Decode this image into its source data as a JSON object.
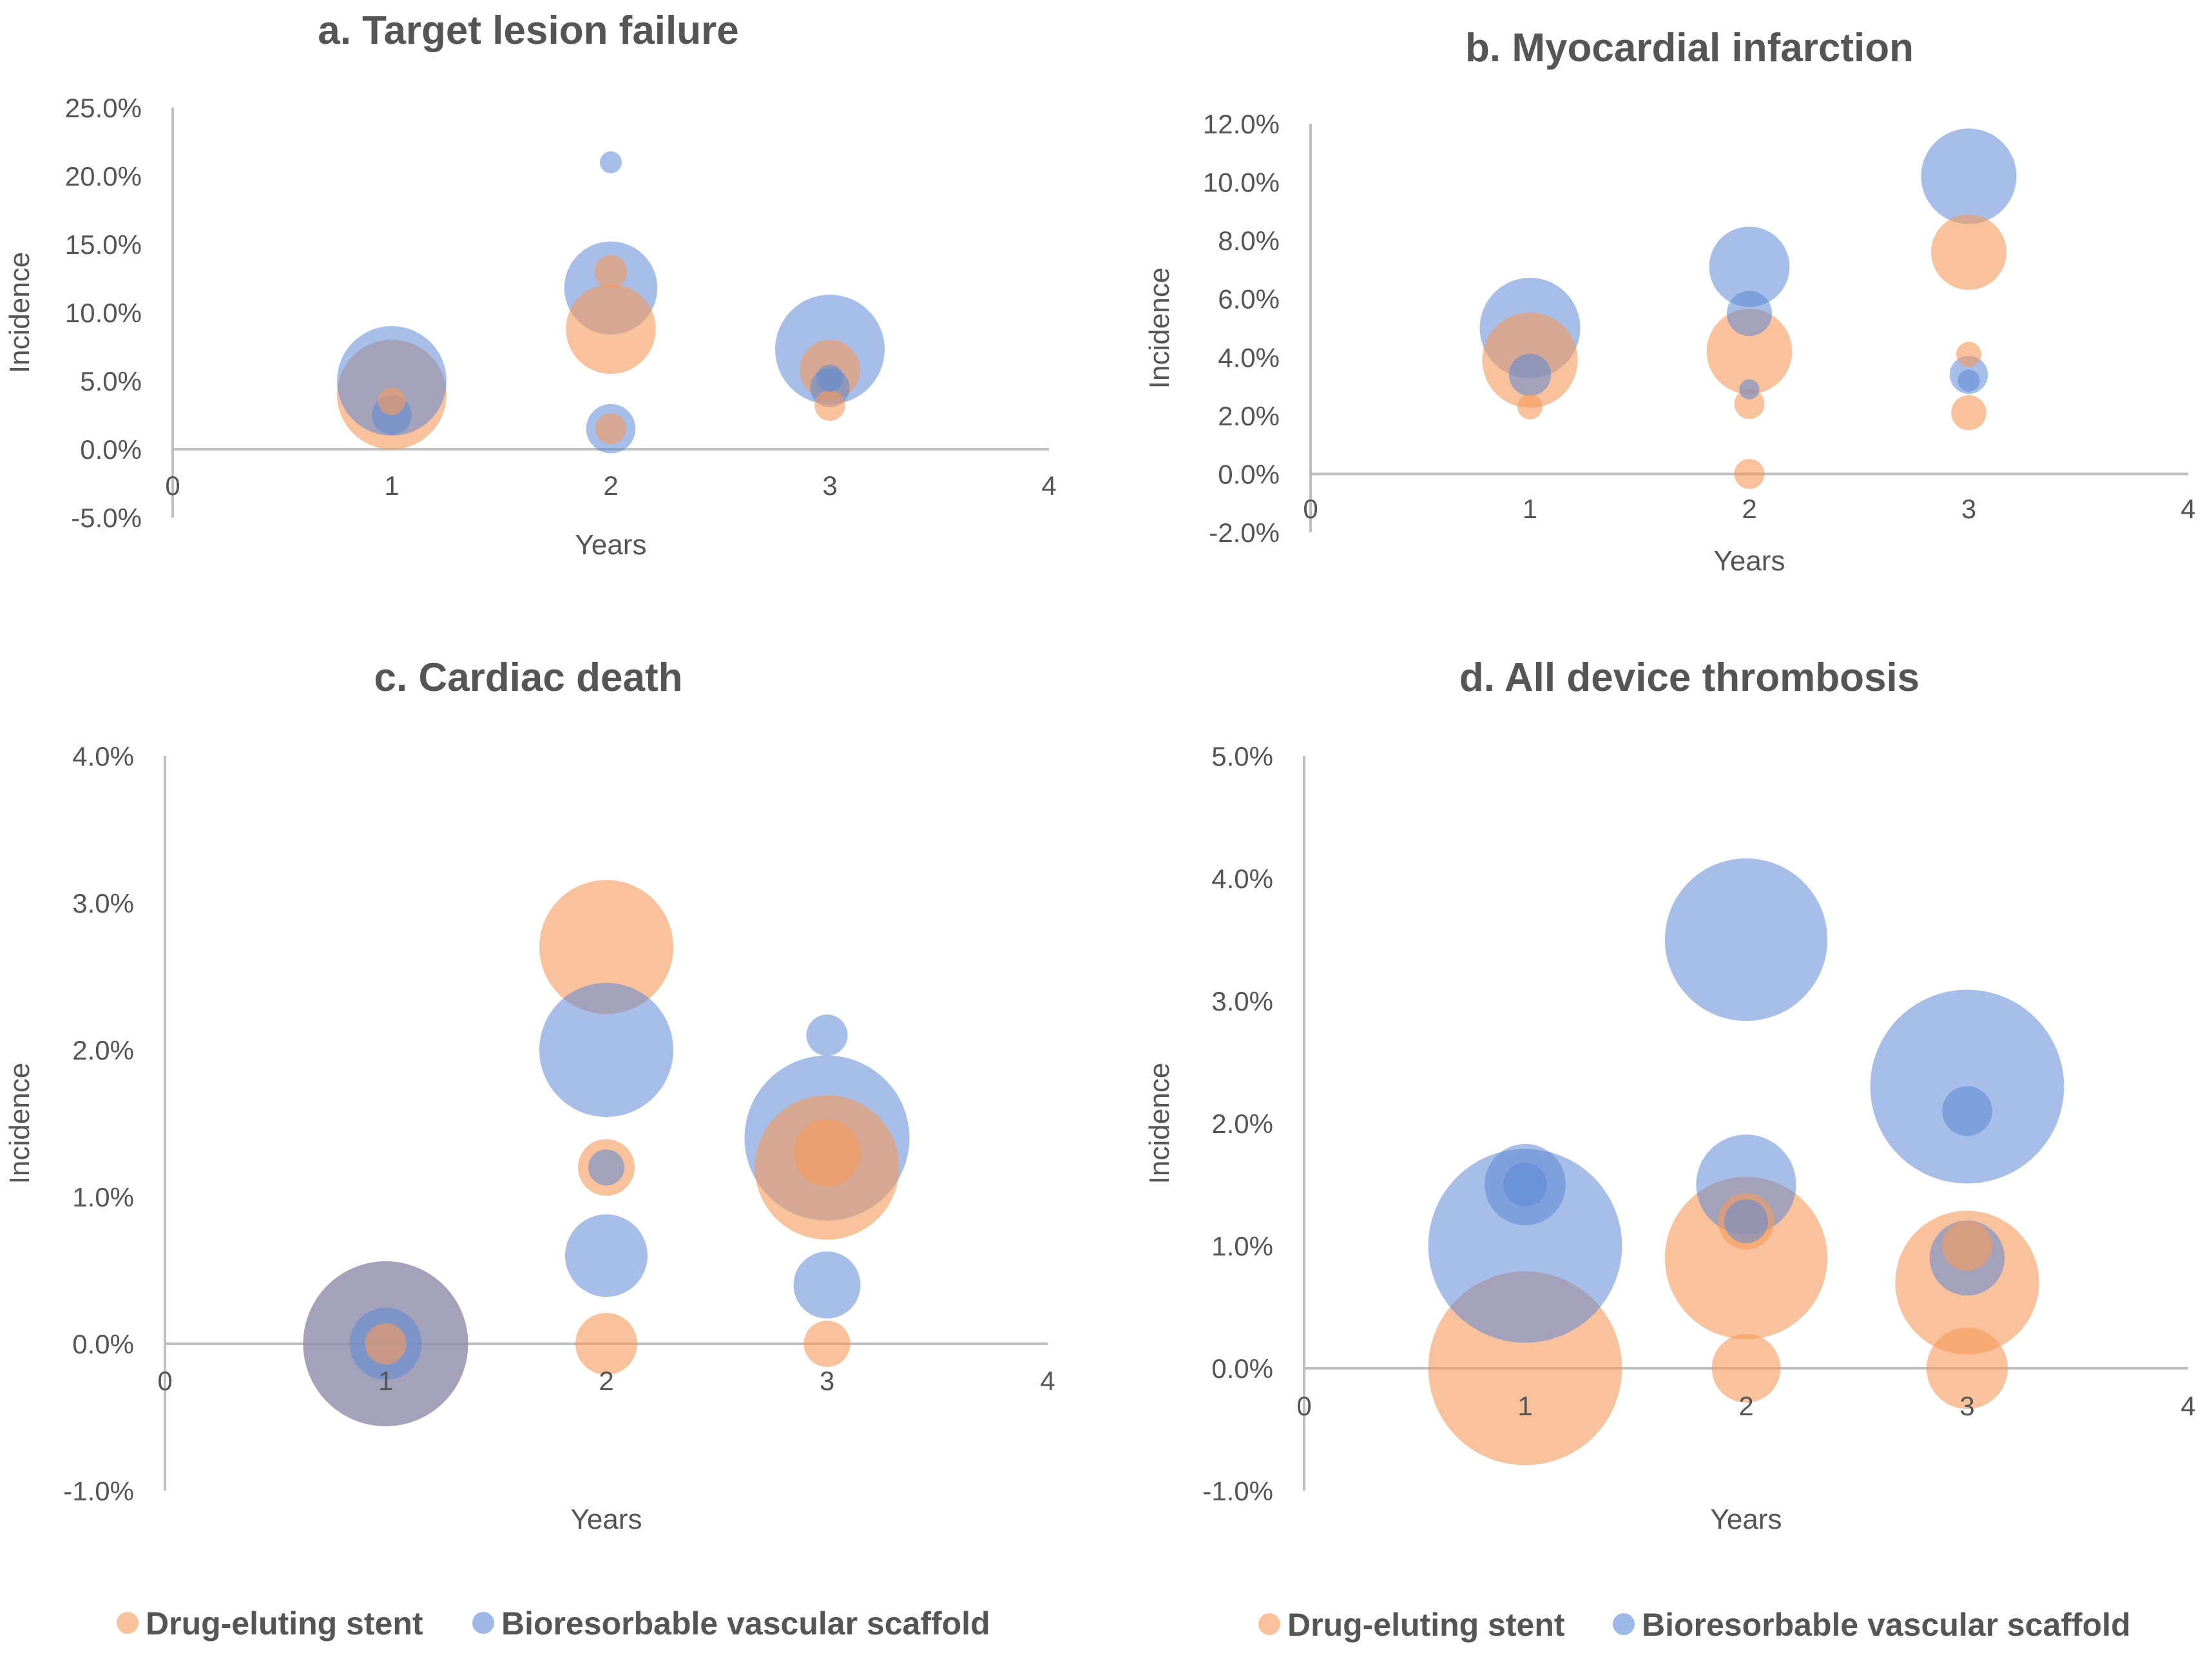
{
  "colors": {
    "des": "#f79a5a",
    "bvs": "#5c88d6",
    "axis": "#bfbfbf",
    "text": "#555555"
  },
  "legend": {
    "des_label": "Drug-eluting stent",
    "bvs_label": "Bioresorbable vascular scaffold"
  },
  "chart_data": [
    {
      "type": "bubble",
      "title": "a. Target lesion failure",
      "xlabel": "Years",
      "ylabel": "Incidence",
      "xlim": [
        0,
        4
      ],
      "ylim": [
        -5,
        25
      ],
      "xticks": [
        0,
        1,
        2,
        3,
        4
      ],
      "yticks": [
        -5,
        0,
        5,
        10,
        15,
        20,
        25
      ],
      "ytick_labels": [
        "-5.0%",
        "0.0%",
        "5.0%",
        "10.0%",
        "15.0%",
        "20.0%",
        "25.0%"
      ],
      "series": [
        {
          "name": "Drug-eluting stent",
          "points": [
            {
              "x": 1,
              "y": 4.0,
              "size": 1.0
            },
            {
              "x": 1,
              "y": 3.5,
              "size": 0.25
            },
            {
              "x": 2,
              "y": 8.8,
              "size": 0.82
            },
            {
              "x": 2,
              "y": 13.0,
              "size": 0.3
            },
            {
              "x": 2,
              "y": 1.5,
              "size": 0.28
            },
            {
              "x": 3,
              "y": 5.8,
              "size": 0.55
            },
            {
              "x": 3,
              "y": 3.2,
              "size": 0.28
            }
          ]
        },
        {
          "name": "Bioresorbable vascular scaffold",
          "points": [
            {
              "x": 1,
              "y": 5.0,
              "size": 1.0
            },
            {
              "x": 1,
              "y": 2.5,
              "size": 0.36
            },
            {
              "x": 2,
              "y": 11.8,
              "size": 0.85
            },
            {
              "x": 2,
              "y": 21.0,
              "size": 0.2
            },
            {
              "x": 2,
              "y": 1.5,
              "size": 0.45
            },
            {
              "x": 3,
              "y": 7.3,
              "size": 1.0
            },
            {
              "x": 3,
              "y": 5.2,
              "size": 0.25
            },
            {
              "x": 3,
              "y": 4.5,
              "size": 0.36
            }
          ]
        }
      ]
    },
    {
      "type": "bubble",
      "title": "b. Myocardial infarction",
      "xlabel": "Years",
      "ylabel": "Incidence",
      "xlim": [
        0,
        4
      ],
      "ylim": [
        -2,
        12
      ],
      "xticks": [
        0,
        1,
        2,
        3,
        4
      ],
      "yticks": [
        -2,
        0,
        2,
        4,
        6,
        8,
        10,
        12
      ],
      "ytick_labels": [
        "-2.0%",
        "0.0%",
        "2.0%",
        "4.0%",
        "6.0%",
        "8.0%",
        "10.0%",
        "12.0%"
      ],
      "series": [
        {
          "name": "Drug-eluting stent",
          "points": [
            {
              "x": 1,
              "y": 3.9,
              "size": 0.95
            },
            {
              "x": 1,
              "y": 2.3,
              "size": 0.25
            },
            {
              "x": 2,
              "y": 4.2,
              "size": 0.85
            },
            {
              "x": 2,
              "y": 2.4,
              "size": 0.3
            },
            {
              "x": 2,
              "y": 0.0,
              "size": 0.3
            },
            {
              "x": 3,
              "y": 7.6,
              "size": 0.75
            },
            {
              "x": 3,
              "y": 4.1,
              "size": 0.25
            },
            {
              "x": 3,
              "y": 2.1,
              "size": 0.35
            }
          ]
        },
        {
          "name": "Bioresorbable vascular scaffold",
          "points": [
            {
              "x": 1,
              "y": 5.0,
              "size": 1.0
            },
            {
              "x": 1,
              "y": 3.4,
              "size": 0.42
            },
            {
              "x": 2,
              "y": 7.1,
              "size": 0.8
            },
            {
              "x": 2,
              "y": 5.5,
              "size": 0.45
            },
            {
              "x": 2,
              "y": 2.9,
              "size": 0.2
            },
            {
              "x": 3,
              "y": 10.2,
              "size": 0.95
            },
            {
              "x": 3,
              "y": 3.4,
              "size": 0.38
            },
            {
              "x": 3,
              "y": 3.2,
              "size": 0.22
            }
          ]
        }
      ]
    },
    {
      "type": "bubble",
      "title": "c. Cardiac death",
      "xlabel": "Years",
      "ylabel": "Incidence",
      "xlim": [
        0,
        4
      ],
      "ylim": [
        -1,
        4
      ],
      "xticks": [
        0,
        1,
        2,
        3,
        4
      ],
      "yticks": [
        -1,
        0,
        1,
        2,
        3,
        4
      ],
      "ytick_labels": [
        "-1.0%",
        "0.0%",
        "1.0%",
        "2.0%",
        "3.0%",
        "4.0%"
      ],
      "series": [
        {
          "name": "Drug-eluting stent",
          "points": [
            {
              "x": 1,
              "y": 0.0,
              "size": 1.6
            },
            {
              "x": 1,
              "y": 0.0,
              "size": 0.4
            },
            {
              "x": 2,
              "y": 2.7,
              "size": 1.3
            },
            {
              "x": 2,
              "y": 1.2,
              "size": 0.55
            },
            {
              "x": 2,
              "y": 0.0,
              "size": 0.6
            },
            {
              "x": 3,
              "y": 1.2,
              "size": 1.4
            },
            {
              "x": 3,
              "y": 1.3,
              "size": 0.65
            },
            {
              "x": 3,
              "y": 0.0,
              "size": 0.45
            }
          ]
        },
        {
          "name": "Bioresorbable vascular scaffold",
          "points": [
            {
              "x": 1,
              "y": 0.0,
              "size": 1.6
            },
            {
              "x": 1,
              "y": 0.0,
              "size": 0.7
            },
            {
              "x": 2,
              "y": 2.0,
              "size": 1.3
            },
            {
              "x": 2,
              "y": 1.2,
              "size": 0.35
            },
            {
              "x": 2,
              "y": 0.6,
              "size": 0.8
            },
            {
              "x": 3,
              "y": 1.4,
              "size": 1.6
            },
            {
              "x": 3,
              "y": 2.1,
              "size": 0.4
            },
            {
              "x": 3,
              "y": 0.4,
              "size": 0.65
            }
          ]
        }
      ]
    },
    {
      "type": "bubble",
      "title": "d. All device thrombosis",
      "xlabel": "Years",
      "ylabel": "Incidence",
      "xlim": [
        0,
        4
      ],
      "ylim": [
        -1,
        5
      ],
      "xticks": [
        0,
        1,
        2,
        3,
        4
      ],
      "yticks": [
        -1,
        0,
        1,
        2,
        3,
        4,
        5
      ],
      "ytick_labels": [
        "-1.0%",
        "0.0%",
        "1.0%",
        "2.0%",
        "3.0%",
        "4.0%",
        "5.0%"
      ],
      "series": [
        {
          "name": "Drug-eluting stent",
          "points": [
            {
              "x": 1,
              "y": 0.0,
              "size": 1.55
            },
            {
              "x": 2,
              "y": 0.9,
              "size": 1.3
            },
            {
              "x": 2,
              "y": 1.2,
              "size": 0.45
            },
            {
              "x": 2,
              "y": 0.0,
              "size": 0.55
            },
            {
              "x": 3,
              "y": 0.7,
              "size": 1.15
            },
            {
              "x": 3,
              "y": 1.0,
              "size": 0.4
            },
            {
              "x": 3,
              "y": 0.0,
              "size": 0.65
            }
          ]
        },
        {
          "name": "Bioresorbable vascular scaffold",
          "points": [
            {
              "x": 1,
              "y": 1.0,
              "size": 1.55
            },
            {
              "x": 1,
              "y": 1.5,
              "size": 0.65
            },
            {
              "x": 1,
              "y": 1.5,
              "size": 0.35
            },
            {
              "x": 2,
              "y": 3.5,
              "size": 1.3
            },
            {
              "x": 2,
              "y": 1.5,
              "size": 0.8
            },
            {
              "x": 2,
              "y": 1.2,
              "size": 0.35
            },
            {
              "x": 3,
              "y": 2.3,
              "size": 1.55
            },
            {
              "x": 3,
              "y": 2.1,
              "size": 0.4
            },
            {
              "x": 3,
              "y": 0.9,
              "size": 0.6
            }
          ]
        }
      ]
    }
  ]
}
